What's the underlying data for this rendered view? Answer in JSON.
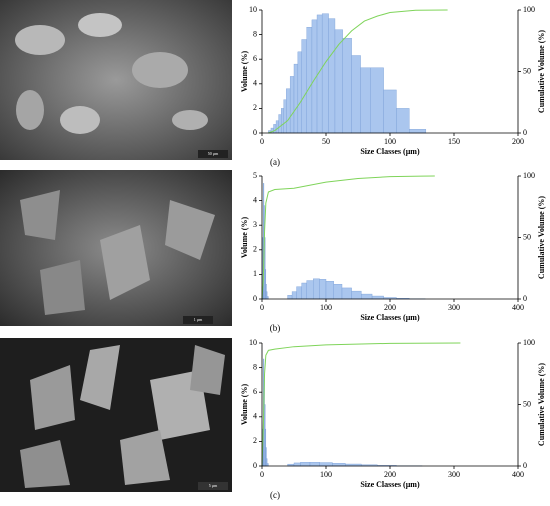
{
  "images": [
    {
      "scale_bar": "50 µm"
    },
    {
      "scale_bar": "1 µm"
    },
    {
      "scale_bar": "5 µm"
    }
  ],
  "chart_data": [
    {
      "type": "histogram",
      "label": "(a)",
      "xlabel": "Size Classes (µm)",
      "ylabel": "Volume (%)",
      "y2label": "Cumulative Volume (%)",
      "bins": [
        5,
        7,
        9,
        11,
        13,
        15,
        17,
        19,
        22,
        25,
        28,
        31,
        35,
        39,
        43,
        47,
        52,
        57,
        63,
        70,
        77,
        85,
        95,
        105,
        115,
        128
      ],
      "values": [
        0.2,
        0.4,
        0.7,
        1.0,
        1.5,
        2.0,
        2.7,
        3.6,
        4.6,
        5.6,
        6.6,
        7.6,
        8.6,
        9.2,
        9.6,
        9.7,
        9.3,
        8.4,
        7.7,
        6.3,
        5.3,
        5.3,
        3.5,
        2.0,
        0.3
      ],
      "color": "#aac6ee",
      "edge_color": "#7a9fd6",
      "line": {
        "x": [
          5,
          10,
          20,
          30,
          40,
          50,
          60,
          70,
          80,
          90,
          100,
          120,
          145
        ],
        "values": [
          0,
          2,
          10,
          25,
          42,
          58,
          72,
          83,
          91,
          95,
          98,
          99.8,
          100
        ],
        "color": "#7fd45a",
        "axis": "y2"
      },
      "xlim": [
        0,
        200
      ],
      "xticks": [
        0,
        50,
        100,
        150,
        200
      ],
      "ylim": [
        0,
        10
      ],
      "yticks": [
        0,
        2,
        4,
        6,
        8,
        10
      ],
      "y2lim": [
        0,
        100
      ],
      "y2ticks": [
        0,
        50,
        100
      ]
    },
    {
      "type": "histogram",
      "label": "(b)",
      "xlabel": "Size Classes (µm)",
      "ylabel": "Volume (%)",
      "y2label": "Cumulative Volume (%)",
      "bins": [
        0,
        1,
        2,
        3,
        4,
        5,
        6,
        7,
        8,
        10,
        40,
        47,
        54,
        62,
        70,
        80,
        90,
        100,
        112,
        125,
        140,
        155,
        172,
        190,
        210,
        230,
        255
      ],
      "values": [
        0.5,
        2.5,
        4.7,
        3.8,
        2.5,
        1.2,
        0.6,
        0.3,
        0.1,
        0,
        0.15,
        0.3,
        0.5,
        0.65,
        0.75,
        0.82,
        0.8,
        0.72,
        0.6,
        0.45,
        0.32,
        0.2,
        0.12,
        0.06,
        0.03,
        0.01
      ],
      "color": "#aac6ee",
      "edge_color": "#7a9fd6",
      "line": {
        "x": [
          0,
          2,
          4,
          6,
          10,
          20,
          50,
          100,
          150,
          200,
          250,
          270
        ],
        "values": [
          0,
          15,
          55,
          78,
          87,
          89,
          90,
          95,
          98,
          99.5,
          99.9,
          100
        ],
        "color": "#7fd45a",
        "axis": "y2"
      },
      "xlim": [
        0,
        400
      ],
      "xticks": [
        0,
        100,
        200,
        300,
        400
      ],
      "ylim": [
        0,
        5
      ],
      "yticks": [
        0,
        1,
        2,
        3,
        4,
        5
      ],
      "y2lim": [
        0,
        100
      ],
      "y2ticks": [
        0,
        50,
        100
      ]
    },
    {
      "type": "histogram",
      "label": "(c)",
      "xlabel": "Size Classes (µm)",
      "ylabel": "Volume (%)",
      "y2label": "Cumulative Volume (%)",
      "bins": [
        0,
        1,
        2,
        3,
        4,
        5,
        6,
        7,
        8,
        10,
        40,
        50,
        60,
        75,
        90,
        110,
        130,
        155,
        180,
        210,
        250
      ],
      "values": [
        0.5,
        3,
        8.7,
        7,
        5,
        3,
        1.5,
        0.6,
        0.2,
        0,
        0.15,
        0.25,
        0.3,
        0.3,
        0.28,
        0.22,
        0.16,
        0.1,
        0.05,
        0.02
      ],
      "color": "#aac6ee",
      "edge_color": "#7a9fd6",
      "line": {
        "x": [
          0,
          2,
          4,
          6,
          10,
          20,
          50,
          100,
          200,
          310
        ],
        "values": [
          0,
          30,
          75,
          90,
          94,
          95,
          97,
          98.5,
          99.7,
          100
        ],
        "color": "#7fd45a",
        "axis": "y2"
      },
      "xlim": [
        0,
        400
      ],
      "xticks": [
        0,
        100,
        200,
        300,
        400
      ],
      "ylim": [
        0,
        10
      ],
      "yticks": [
        0,
        2,
        4,
        6,
        8,
        10
      ],
      "y2lim": [
        0,
        100
      ],
      "y2ticks": [
        0,
        50,
        100
      ]
    }
  ]
}
